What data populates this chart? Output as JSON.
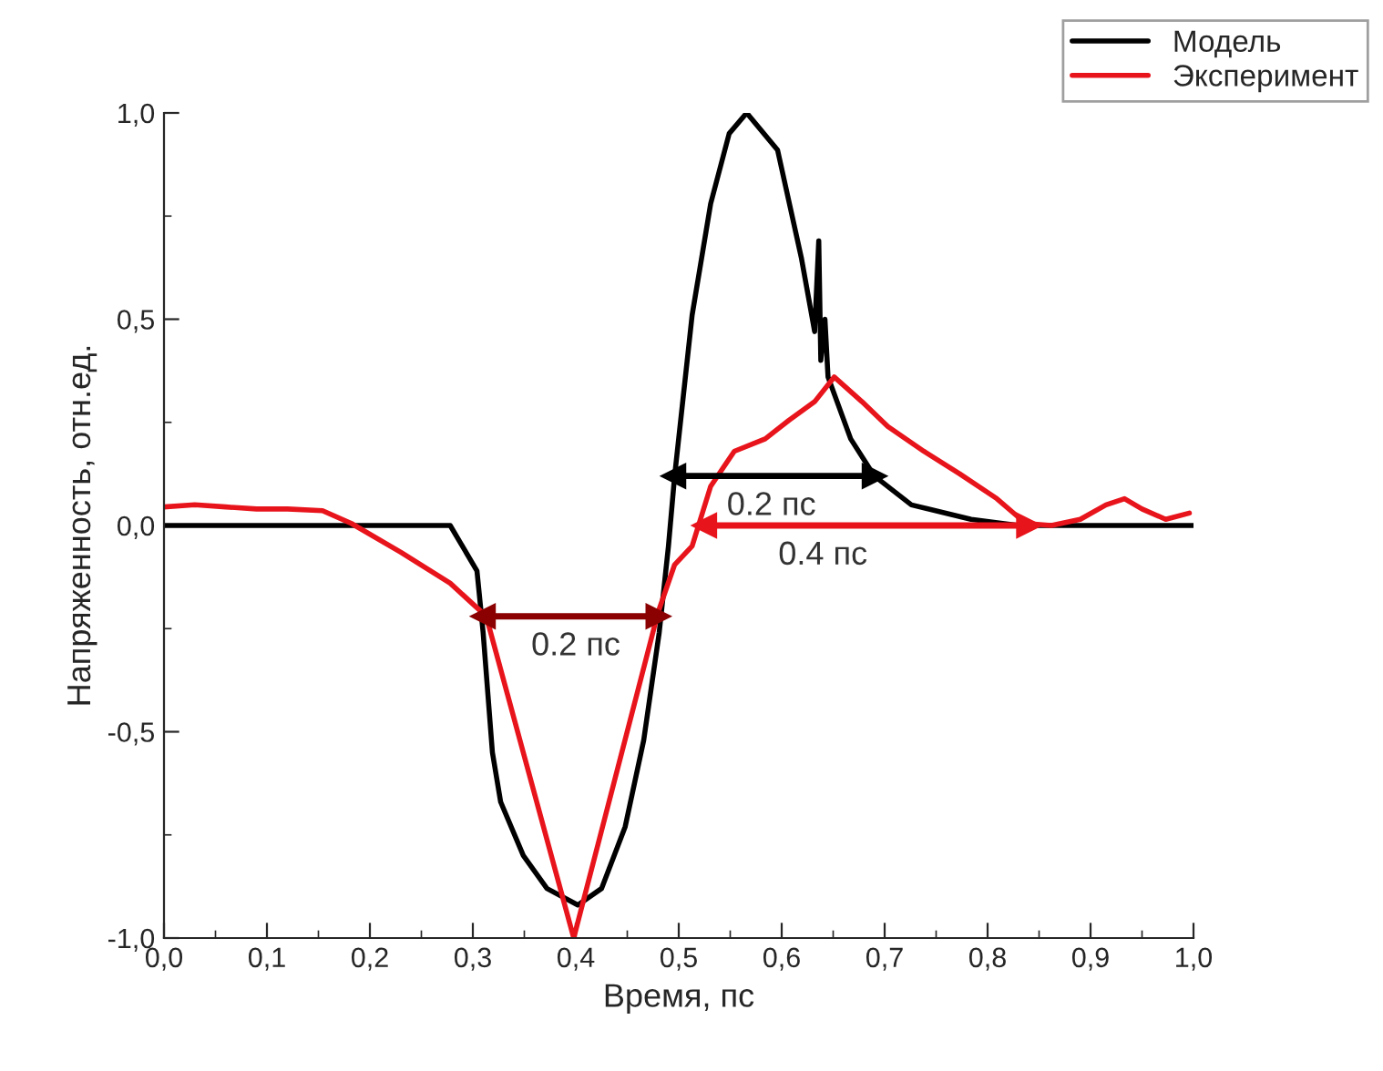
{
  "chart_data": {
    "type": "line",
    "xlabel": "Время, пс",
    "ylabel": "Напряженность, отн.ед.",
    "xlim": [
      0,
      1
    ],
    "ylim": [
      -1,
      1
    ],
    "xticks": [
      {
        "value": 0,
        "label": "0,0"
      },
      {
        "value": 0.1,
        "label": "0,1"
      },
      {
        "value": 0.2,
        "label": "0,2"
      },
      {
        "value": 0.3,
        "label": "0,3"
      },
      {
        "value": 0.4,
        "label": "0,4"
      },
      {
        "value": 0.5,
        "label": "0,5"
      },
      {
        "value": 0.6,
        "label": "0,6"
      },
      {
        "value": 0.7,
        "label": "0,7"
      },
      {
        "value": 0.8,
        "label": "0,8"
      },
      {
        "value": 0.9,
        "label": "0,9"
      },
      {
        "value": 1,
        "label": "1,0"
      }
    ],
    "yticks": [
      {
        "value": -1,
        "label": "-1,0"
      },
      {
        "value": -0.5,
        "label": "-0,5"
      },
      {
        "value": 0,
        "label": "0,0"
      },
      {
        "value": 0.5,
        "label": "0,5"
      },
      {
        "value": 1,
        "label": "1,0"
      }
    ],
    "legend": "top right",
    "grid": false,
    "series": [
      {
        "name": "Модель",
        "color": "#000000",
        "x": [
          0,
          0.1,
          0.2,
          0.278,
          0.304,
          0.31,
          0.319,
          0.327,
          0.349,
          0.372,
          0.402,
          0.425,
          0.448,
          0.466,
          0.481,
          0.49,
          0.496,
          0.513,
          0.531,
          0.549,
          0.566,
          0.596,
          0.619,
          0.632,
          0.636,
          0.638,
          0.642,
          0.645,
          0.667,
          0.69,
          0.726,
          0.784,
          0.83,
          0.9,
          1.0
        ],
        "values": [
          0,
          0,
          0,
          0,
          -0.11,
          -0.26,
          -0.55,
          -0.67,
          -0.8,
          -0.88,
          -0.92,
          -0.88,
          -0.73,
          -0.52,
          -0.26,
          -0.05,
          0.12,
          0.51,
          0.78,
          0.95,
          1.0,
          0.91,
          0.65,
          0.47,
          0.69,
          0.4,
          0.5,
          0.36,
          0.21,
          0.12,
          0.05,
          0.015,
          0,
          0,
          0
        ]
      },
      {
        "name": "Эксперимент",
        "color": "#e8141c",
        "x": [
          0,
          0.03,
          0.06,
          0.09,
          0.12,
          0.154,
          0.182,
          0.23,
          0.278,
          0.313,
          0.398,
          0.48,
          0.496,
          0.513,
          0.531,
          0.554,
          0.584,
          0.607,
          0.632,
          0.651,
          0.678,
          0.703,
          0.738,
          0.773,
          0.809,
          0.837,
          0.862,
          0.89,
          0.915,
          0.933,
          0.95,
          0.973,
          0.996
        ],
        "values": [
          0.045,
          0.05,
          0.045,
          0.04,
          0.04,
          0.036,
          0.005,
          -0.065,
          -0.14,
          -0.22,
          -1.0,
          -0.21,
          -0.095,
          -0.05,
          0.095,
          0.18,
          0.21,
          0.255,
          0.3,
          0.36,
          0.3,
          0.24,
          0.18,
          0.125,
          0.065,
          0.005,
          0,
          0.015,
          0.05,
          0.065,
          0.04,
          0.015,
          0.03
        ]
      },
      {
        "type": "line",
        "marker": "triangle",
        "color": "#8b0000",
        "x": [
          0.31,
          0.48
        ],
        "values": [
          -0.22,
          -0.22
        ]
      },
      {
        "type": "line",
        "marker": "triangle",
        "color": "#000000",
        "x": [
          0.495,
          0.69
        ],
        "values": [
          0.12,
          0.12
        ]
      },
      {
        "type": "line",
        "marker": "triangle",
        "color": "#e8141c",
        "x": [
          0.84,
          0.525
        ],
        "values": [
          0,
          0
        ]
      }
    ],
    "annotations": [
      {
        "text": "0.2 пс",
        "x": 0.4,
        "y": -0.22
      },
      {
        "text": "0.2 пс",
        "x": 0.59,
        "y": 0.12
      },
      {
        "text": "0.4 пс",
        "x": 0.64,
        "y": 0
      }
    ]
  }
}
